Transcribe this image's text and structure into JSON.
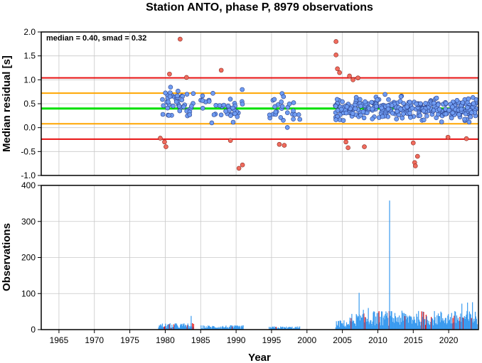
{
  "chart_data": {
    "type": "scatter",
    "title": "Station ANTO, phase P, 8979 observations",
    "xlabel": "Year",
    "xlim": [
      1962.5,
      2024.2
    ],
    "x_ticks": [
      "1965",
      "1970",
      "1975",
      "1980",
      "1985",
      "1990",
      "1995",
      "2000",
      "2005",
      "2010",
      "2015",
      "2020"
    ],
    "colors": {
      "inlier": "#6f9cf2",
      "outlier": "#f06b5d",
      "median_line": "#00e000",
      "smad_line": "#ffa500",
      "limit_line": "#e81010",
      "bar_blue": "#3a9bef",
      "bar_red": "#e81010",
      "grid": "#c8c8c8"
    },
    "residual_panel": {
      "ylabel": "Median residual [s]",
      "ylim": [
        -1.0,
        2.0
      ],
      "y_ticks": [
        "-1.0",
        "-0.5",
        "0.0",
        "0.5",
        "1.0",
        "1.5",
        "2.0"
      ],
      "annotation": "median = 0.40, smad = 0.32",
      "median": 0.4,
      "smad_lines": [
        0.72,
        0.08
      ],
      "limit_lines": [
        1.04,
        -0.24
      ],
      "outliers": [
        [
          1979.3,
          -0.22
        ],
        [
          1979.9,
          -0.3
        ],
        [
          1980.1,
          -0.4
        ],
        [
          1980.6,
          1.12
        ],
        [
          1982.1,
          1.85
        ],
        [
          1983.0,
          1.05
        ],
        [
          1987.9,
          1.2
        ],
        [
          1989.2,
          -0.27
        ],
        [
          1990.4,
          -0.85
        ],
        [
          1990.9,
          -0.78
        ],
        [
          1996.1,
          -0.35
        ],
        [
          1996.8,
          -0.37
        ],
        [
          2004.1,
          1.8
        ],
        [
          2004.1,
          1.52
        ],
        [
          2004.3,
          1.23
        ],
        [
          2004.6,
          1.15
        ],
        [
          2005.5,
          -0.3
        ],
        [
          2005.8,
          -0.42
        ],
        [
          2006.0,
          1.08
        ],
        [
          2006.5,
          1.0
        ],
        [
          2007.2,
          1.04
        ],
        [
          2008.1,
          -0.4
        ],
        [
          2015.0,
          -0.32
        ],
        [
          2015.2,
          -0.73
        ],
        [
          2015.3,
          -0.8
        ],
        [
          2015.6,
          -0.6
        ],
        [
          2019.9,
          -0.2
        ],
        [
          2022.5,
          -0.23
        ]
      ]
    },
    "observation_panel": {
      "ylabel": "Observations",
      "ylim": [
        0,
        400
      ],
      "y_ticks": [
        "0",
        "100",
        "200",
        "300",
        "400"
      ],
      "spikes": [
        [
          2011.6,
          358
        ],
        [
          2007.3,
          102
        ],
        [
          2007.9,
          55
        ],
        [
          2008.6,
          60
        ],
        [
          2009.3,
          48
        ],
        [
          2021.8,
          72
        ],
        [
          2022.6,
          75
        ],
        [
          2023.3,
          76
        ],
        [
          1983.6,
          38
        ]
      ]
    }
  }
}
